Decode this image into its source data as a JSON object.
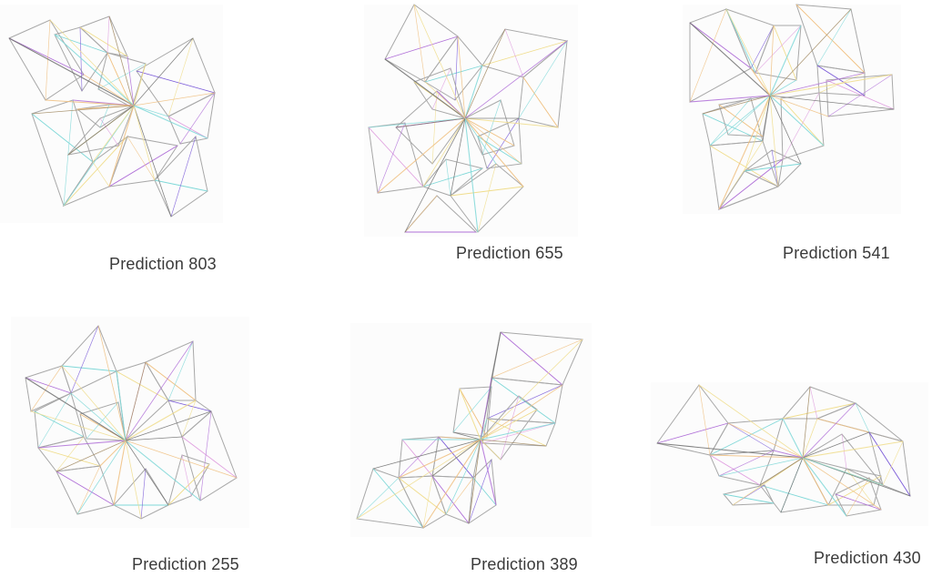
{
  "panels": [
    {
      "id": "p803",
      "caption": "Prediction 803"
    },
    {
      "id": "p655",
      "caption": "Prediction 655"
    },
    {
      "id": "p541",
      "caption": "Prediction 541"
    },
    {
      "id": "p255",
      "caption": "Prediction 255"
    },
    {
      "id": "p389",
      "caption": "Prediction 389"
    },
    {
      "id": "p430",
      "caption": "Prediction 430"
    }
  ],
  "colors": {
    "outline": "#a8a8a8",
    "dark": "#6e6e6e",
    "purple": "#b070d8",
    "violet": "#7a5ad8",
    "cyan": "#7fd8d8",
    "yellow": "#f0dd8c",
    "orange": "#f0c080",
    "brown": "#a08860",
    "pink": "#e0a0e0"
  }
}
